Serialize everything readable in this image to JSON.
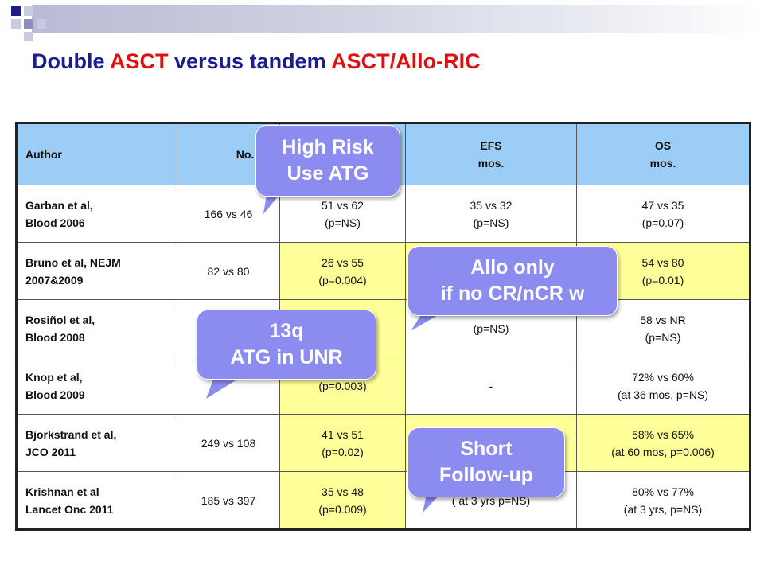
{
  "slide": {
    "title_part1": "Double ",
    "title_part2": "ASCT",
    "title_part3": " versus tandem ",
    "title_part4": "ASCT/Allo-RIC"
  },
  "colors": {
    "header_bg": "#9ccdf7",
    "highlight_bg": "#ffff99",
    "bubble_bg": "#8c8cf0",
    "title_blue": "#1c1c8c",
    "title_red": "#e01010"
  },
  "table": {
    "headers": {
      "author": "Author",
      "pts": "No. Pts",
      "pfs": "",
      "efs_l1": "EFS",
      "efs_l2": "mos.",
      "os_l1": "OS",
      "os_l2": "mos."
    },
    "rows": [
      {
        "author_l1": "Garban et al,",
        "author_l2": "Blood 2006",
        "pts": "166 vs 46",
        "pfs_l1": "51 vs 62",
        "pfs_l2": "(p=NS)",
        "efs_l1": "35 vs 32",
        "efs_l2": "(p=NS)",
        "os_l1": "47 vs 35",
        "os_l2": "(p=0.07)"
      },
      {
        "author_l1": "Bruno et al, NEJM",
        "author_l2": "2007&2009",
        "pts": "82 vs 80",
        "pfs_l1": "26 vs 55",
        "pfs_l2": "(p=0.004)",
        "efs_l1": "",
        "efs_l2": "",
        "os_l1": "54 vs 80",
        "os_l2": "(p=0.01)"
      },
      {
        "author_l1": "Rosiñol et al,",
        "author_l2": "Blood 2008",
        "pts": "",
        "pfs_l1": "",
        "pfs_l2": "",
        "efs_l1": "",
        "efs_l2": "(p=NS)",
        "os_l1": "58 vs NR",
        "os_l2": "(p=NS)"
      },
      {
        "author_l1": "Knop et al,",
        "author_l2": "Blood 2009",
        "pts": "",
        "pfs_l1": "",
        "pfs_l2": "(p=0.003)",
        "efs_l1": "-",
        "efs_l2": "",
        "os_l1": "72% vs 60%",
        "os_l2": "(at 36 mos, p=NS)"
      },
      {
        "author_l1": "Bjorkstrand et al,",
        "author_l2": "JCO 2011",
        "pts": "249 vs 108",
        "pfs_l1": "41 vs 51",
        "pfs_l2": "(p=0.02)",
        "efs_l1": "",
        "efs_l2": "",
        "os_l1": "58% vs 65%",
        "os_l2": "(at 60 mos, p=0.006)"
      },
      {
        "author_l1": "Krishnan et al",
        "author_l2": "Lancet Onc 2011",
        "pts": "185 vs 397",
        "pfs_l1": "35 vs 48",
        "pfs_l2": "(p=0.009)",
        "efs_l1": "",
        "efs_l2": "( at 3 yrs p=NS)",
        "os_l1": "80% vs 77%",
        "os_l2": "(at 3 yrs, p=NS)"
      }
    ]
  },
  "callouts": {
    "high_risk": {
      "l1": "High Risk",
      "l2": "Use ATG"
    },
    "allo_only": {
      "l1": "Allo only",
      "l2": "if no CR/nCR w"
    },
    "del13q": {
      "l1": "13q",
      "l2": "ATG in UNR"
    },
    "short_fu": {
      "l1": "Short",
      "l2": "Follow-up"
    }
  }
}
